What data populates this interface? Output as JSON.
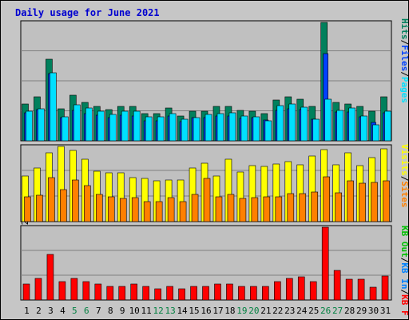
{
  "title": "Daily usage for June 2021",
  "colors": {
    "page_bg": "#ffffff",
    "outer_bg": "#c6c6c6",
    "panel_bg": "#c0c0c0",
    "grid": "#808080",
    "hits": "#00805c",
    "files": "#0040ff",
    "pages": "#00e0ff",
    "visits": "#ffff00",
    "sites": "#ff8000",
    "kbf": "#ff0000",
    "kbin": "#0080ff",
    "kbout": "#00c000",
    "weekday_label": "#000000",
    "weekend_label": "#008040",
    "separator": "#000000"
  },
  "legend": {
    "top": [
      {
        "text": "Hits",
        "color_key": "hits"
      },
      {
        "text": "/",
        "color_key": "separator"
      },
      {
        "text": "Files",
        "color_key": "files"
      },
      {
        "text": "/",
        "color_key": "separator"
      },
      {
        "text": "Pages",
        "color_key": "pages"
      }
    ],
    "middle": [
      {
        "text": "Visits",
        "color_key": "visits"
      },
      {
        "text": "/",
        "color_key": "separator"
      },
      {
        "text": "Sites",
        "color_key": "sites"
      }
    ],
    "bottom": [
      {
        "text": "KB Out",
        "color_key": "kbout"
      },
      {
        "text": "/",
        "color_key": "separator"
      },
      {
        "text": "KB In",
        "color_key": "kbin"
      },
      {
        "text": "/",
        "color_key": "separator"
      },
      {
        "text": "KB F",
        "color_key": "kbf"
      }
    ]
  },
  "chart_data": [
    {
      "type": "bar",
      "panel": "hits-files-pages",
      "ymax_label": "36053",
      "ylim": [
        0,
        36053
      ],
      "categories": [
        "1",
        "2",
        "3",
        "4",
        "5",
        "6",
        "7",
        "8",
        "9",
        "10",
        "11",
        "12",
        "13",
        "14",
        "15",
        "16",
        "17",
        "18",
        "19",
        "20",
        "21",
        "22",
        "23",
        "24",
        "25",
        "26",
        "27",
        "28",
        "29",
        "30",
        "31"
      ],
      "weekend_days": [
        "5",
        "6",
        "12",
        "13",
        "19",
        "20",
        "26",
        "27"
      ],
      "series": [
        {
          "name": "Hits",
          "color_key": "hits",
          "values": [
            11200,
            13300,
            24800,
            9800,
            14000,
            11600,
            10400,
            9400,
            10400,
            10400,
            8200,
            8200,
            10000,
            7600,
            9000,
            9000,
            10400,
            10400,
            9200,
            9000,
            8400,
            12400,
            13300,
            12700,
            10400,
            36053,
            11600,
            11200,
            10400,
            9000,
            13300
          ]
        },
        {
          "name": "Files",
          "color_key": "files",
          "values": [
            8600,
            9500,
            20500,
            7000,
            9300,
            8400,
            7800,
            7100,
            7800,
            7600,
            6200,
            6000,
            7600,
            5900,
            7000,
            7000,
            7600,
            7600,
            6900,
            7000,
            6300,
            9300,
            9800,
            9500,
            6500,
            26500,
            8800,
            8800,
            7400,
            5700,
            8600
          ]
        },
        {
          "name": "Pages",
          "color_key": "pages",
          "values": [
            9000,
            9800,
            20700,
            7300,
            11000,
            10000,
            9000,
            8000,
            9000,
            9000,
            7300,
            7300,
            8400,
            6500,
            7000,
            8000,
            8300,
            8500,
            7600,
            7300,
            6200,
            10800,
            11300,
            10200,
            6500,
            12700,
            9300,
            10000,
            7600,
            4800,
            9000
          ]
        }
      ]
    },
    {
      "type": "bar",
      "panel": "visits-sites",
      "ymax_label": "1813",
      "ylim": [
        0,
        1813
      ],
      "categories": [
        "1",
        "2",
        "3",
        "4",
        "5",
        "6",
        "7",
        "8",
        "9",
        "10",
        "11",
        "12",
        "13",
        "14",
        "15",
        "16",
        "17",
        "18",
        "19",
        "20",
        "21",
        "22",
        "23",
        "24",
        "25",
        "26",
        "27",
        "28",
        "29",
        "30",
        "31"
      ],
      "series": [
        {
          "name": "Visits",
          "color_key": "visits",
          "values": [
            1090,
            1290,
            1650,
            1813,
            1720,
            1500,
            1220,
            1180,
            1180,
            1060,
            1040,
            990,
            1000,
            1000,
            1300,
            1400,
            1100,
            1500,
            1200,
            1350,
            1330,
            1380,
            1450,
            1370,
            1580,
            1740,
            1370,
            1650,
            1350,
            1540,
            1760
          ]
        },
        {
          "name": "Sites",
          "color_key": "sites",
          "values": [
            600,
            640,
            1060,
            770,
            1000,
            870,
            650,
            600,
            560,
            570,
            490,
            490,
            570,
            490,
            660,
            1050,
            600,
            660,
            550,
            570,
            600,
            600,
            670,
            680,
            720,
            1085,
            690,
            980,
            930,
            940,
            980
          ]
        }
      ]
    },
    {
      "type": "bar",
      "panel": "kbf-kbin-kbout",
      "ymax_label": "1320522",
      "ylim": [
        0,
        1320522
      ],
      "categories": [
        "1",
        "2",
        "3",
        "4",
        "5",
        "6",
        "7",
        "8",
        "9",
        "10",
        "11",
        "12",
        "13",
        "14",
        "15",
        "16",
        "17",
        "18",
        "19",
        "20",
        "21",
        "22",
        "23",
        "24",
        "25",
        "26",
        "27",
        "28",
        "29",
        "30",
        "31"
      ],
      "series": [
        {
          "name": "KB F",
          "color_key": "kbf",
          "values": [
            290000,
            395000,
            830000,
            330000,
            395000,
            330000,
            290000,
            250000,
            250000,
            290000,
            250000,
            210000,
            250000,
            210000,
            250000,
            250000,
            290000,
            290000,
            250000,
            250000,
            250000,
            330000,
            395000,
            420000,
            330000,
            1320522,
            540000,
            380000,
            380000,
            230000,
            440000
          ]
        }
      ]
    }
  ]
}
